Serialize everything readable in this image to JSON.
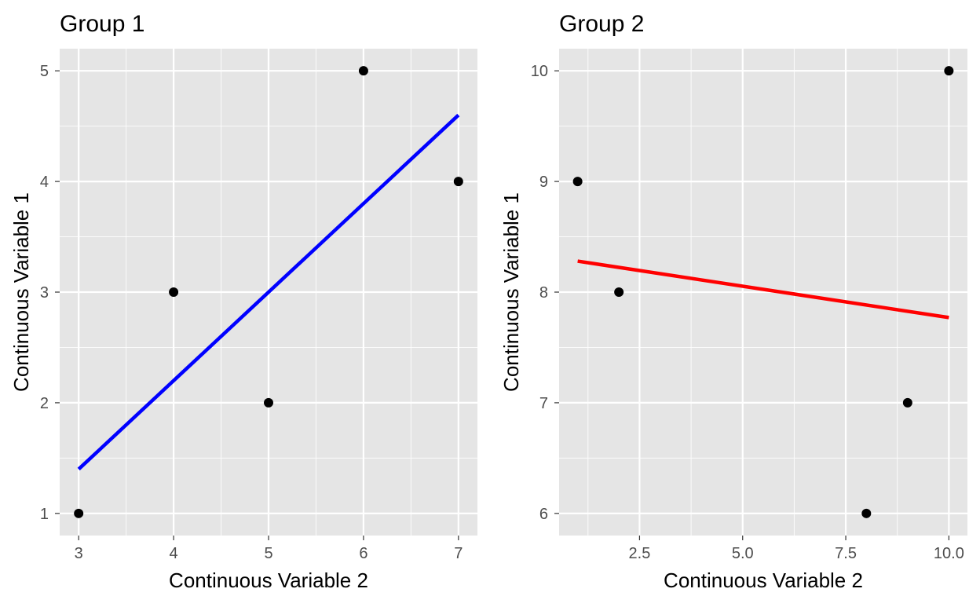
{
  "chart_data": [
    {
      "type": "scatter",
      "title": "Group 1",
      "xlabel": "Continuous Variable 2",
      "ylabel": "Continuous Variable 1",
      "xlim": [
        2.8,
        7.2
      ],
      "ylim": [
        0.8,
        5.2
      ],
      "xticks": [
        3,
        4,
        5,
        6,
        7
      ],
      "xtick_labels": [
        "3",
        "4",
        "5",
        "6",
        "7"
      ],
      "yticks": [
        1,
        2,
        3,
        4,
        5
      ],
      "ytick_labels": [
        "1",
        "2",
        "3",
        "4",
        "5"
      ],
      "grid": true,
      "points": {
        "x": [
          3,
          4,
          5,
          6,
          7
        ],
        "y": [
          1,
          3,
          2,
          5,
          4
        ],
        "color": "#000000"
      },
      "fit_line": {
        "x": [
          3,
          7
        ],
        "y": [
          1.4,
          4.6
        ],
        "color": "#0000ff"
      }
    },
    {
      "type": "scatter",
      "title": "Group 2",
      "xlabel": "Continuous Variable 2",
      "ylabel": "Continuous Variable 1",
      "xlim": [
        0.55,
        10.45
      ],
      "ylim": [
        5.8,
        10.2
      ],
      "xticks": [
        2.5,
        5.0,
        7.5,
        10.0
      ],
      "xtick_labels": [
        "2.5",
        "5.0",
        "7.5",
        "10.0"
      ],
      "yticks": [
        6,
        7,
        8,
        9,
        10
      ],
      "ytick_labels": [
        "6",
        "7",
        "8",
        "9",
        "10"
      ],
      "grid": true,
      "points": {
        "x": [
          1,
          2,
          8,
          9,
          10
        ],
        "y": [
          9,
          8,
          6,
          7,
          10
        ],
        "color": "#000000"
      },
      "fit_line": {
        "x": [
          1,
          10
        ],
        "y": [
          8.28,
          7.77
        ],
        "color": "#ff0000"
      }
    }
  ],
  "colors": {
    "panel_background": "#e5e5e5",
    "grid": "#ffffff",
    "tick_text": "#4d4d4d"
  }
}
